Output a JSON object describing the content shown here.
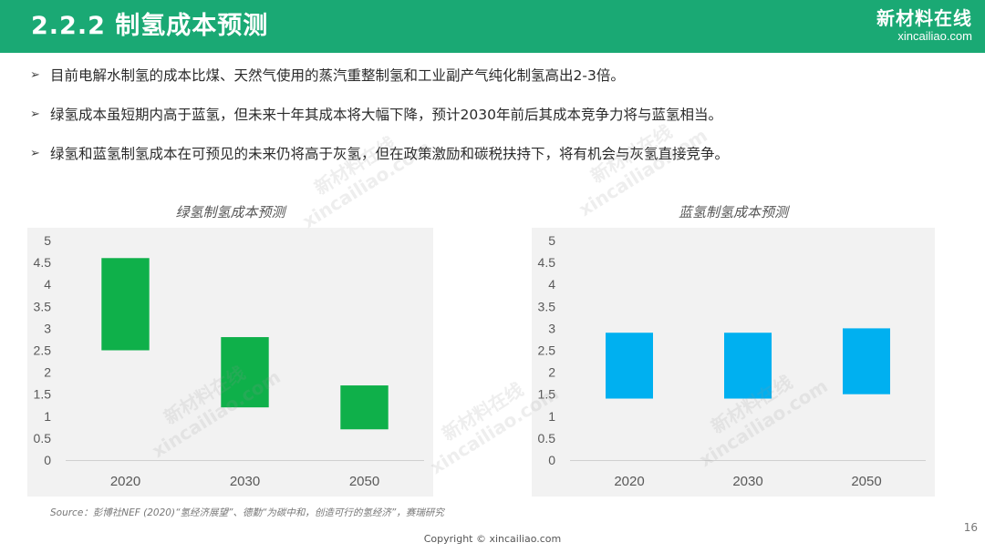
{
  "header": {
    "title": "2.2.2 制氢成本预测",
    "brand_name": "新材料在线",
    "brand_url": "xincailiao.com"
  },
  "bullets": [
    "目前电解水制氢的成本比煤、天然气使用的蒸汽重整制氢和工业副产气纯化制氢高出2-3倍。",
    "绿氢成本虽短期内高于蓝氢，但未来十年其成本将大幅下降，预计2030年前后其成本竞争力将与蓝氢相当。",
    "绿氢和蓝氢制氢成本在可预见的未来仍将高于灰氢，但在政策激励和碳税扶持下，将有机会与灰氢直接竞争。"
  ],
  "bullet_marker": "➢",
  "colors": {
    "header": "#1aa974",
    "green_bar": "#0fb04a",
    "blue_bar": "#00b0f0"
  },
  "chart_data": [
    {
      "type": "bar",
      "subtype": "floating-range",
      "title": "绿氢制氢成本预测",
      "categories": [
        "2020",
        "2030",
        "2050"
      ],
      "ranges": [
        [
          2.5,
          4.6
        ],
        [
          1.2,
          2.8
        ],
        [
          0.7,
          1.7
        ]
      ],
      "ylim": [
        0,
        5
      ],
      "yticks": [
        "0",
        "0.5",
        "1",
        "1.5",
        "2",
        "2.5",
        "3",
        "3.5",
        "4",
        "4.5",
        "5"
      ],
      "color": "#0fb04a"
    },
    {
      "type": "bar",
      "subtype": "floating-range",
      "title": "蓝氢制氢成本预测",
      "categories": [
        "2020",
        "2030",
        "2050"
      ],
      "ranges": [
        [
          1.4,
          2.9
        ],
        [
          1.4,
          2.9
        ],
        [
          1.5,
          3.0
        ]
      ],
      "ylim": [
        0,
        5
      ],
      "yticks": [
        "0",
        "0.5",
        "1",
        "1.5",
        "2",
        "2.5",
        "3",
        "3.5",
        "4",
        "4.5",
        "5"
      ],
      "color": "#00b0f0"
    }
  ],
  "source": "Source：彭博社NEF (2020)“氢经济展望”、德勤“为碳中和，创造可行的氢经济”，赛瑞研究",
  "copyright": "Copyright © xincailiao.com",
  "page_number": "16",
  "watermarks": [
    {
      "line1": "新材料在线",
      "line2": "xincailiao.com"
    },
    {
      "line1": "新材料在线",
      "line2": "xincailiao.com"
    },
    {
      "line1": "新材料在线",
      "line2": "xincailiao.com"
    },
    {
      "line1": "新材料在线",
      "line2": "xincailiao.com"
    },
    {
      "line1": "新材料在线",
      "line2": "xincailiao.com"
    }
  ]
}
